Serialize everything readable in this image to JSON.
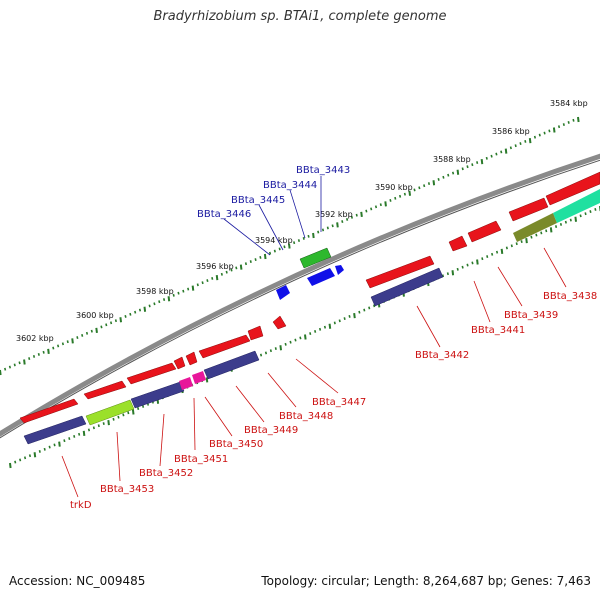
{
  "title": "Bradyrhizobium sp. BTAi1, complete genome",
  "footer": {
    "accession": "Accession: NC_009485",
    "summary": "Topology: circular; Length: 8,264,687 bp; Genes: 7,463"
  },
  "colors": {
    "backbone": "#7a7a7a",
    "tick_major": "#2a7a2a",
    "forward_gene": "#e8141c",
    "reverse_cds": "#3c3c8c",
    "label_forward": "#1a1aa0",
    "label_reverse": "#cc1111",
    "pink": "#e8169a",
    "lime": "#9be02a",
    "green": "#2db82d",
    "olive": "#7a8a2a",
    "teal": "#1fe0a0"
  },
  "scale_ticks": [
    "3584 kbp",
    "3586 kbp",
    "3588 kbp",
    "3590 kbp",
    "3592 kbp",
    "3594 kbp",
    "3596 kbp",
    "3598 kbp",
    "3600 kbp",
    "3602 kbp"
  ],
  "labels_top": [
    "BBta_3443",
    "BBta_3444",
    "BBta_3445",
    "BBta_3446"
  ],
  "labels_bottom": [
    "BBta_3438",
    "BBta_3439",
    "BBta_3441",
    "BBta_3442",
    "BBta_3447",
    "BBta_3448",
    "BBta_3449",
    "BBta_3450",
    "BBta_3451",
    "BBta_3452",
    "BBta_3453",
    "trkD"
  ]
}
